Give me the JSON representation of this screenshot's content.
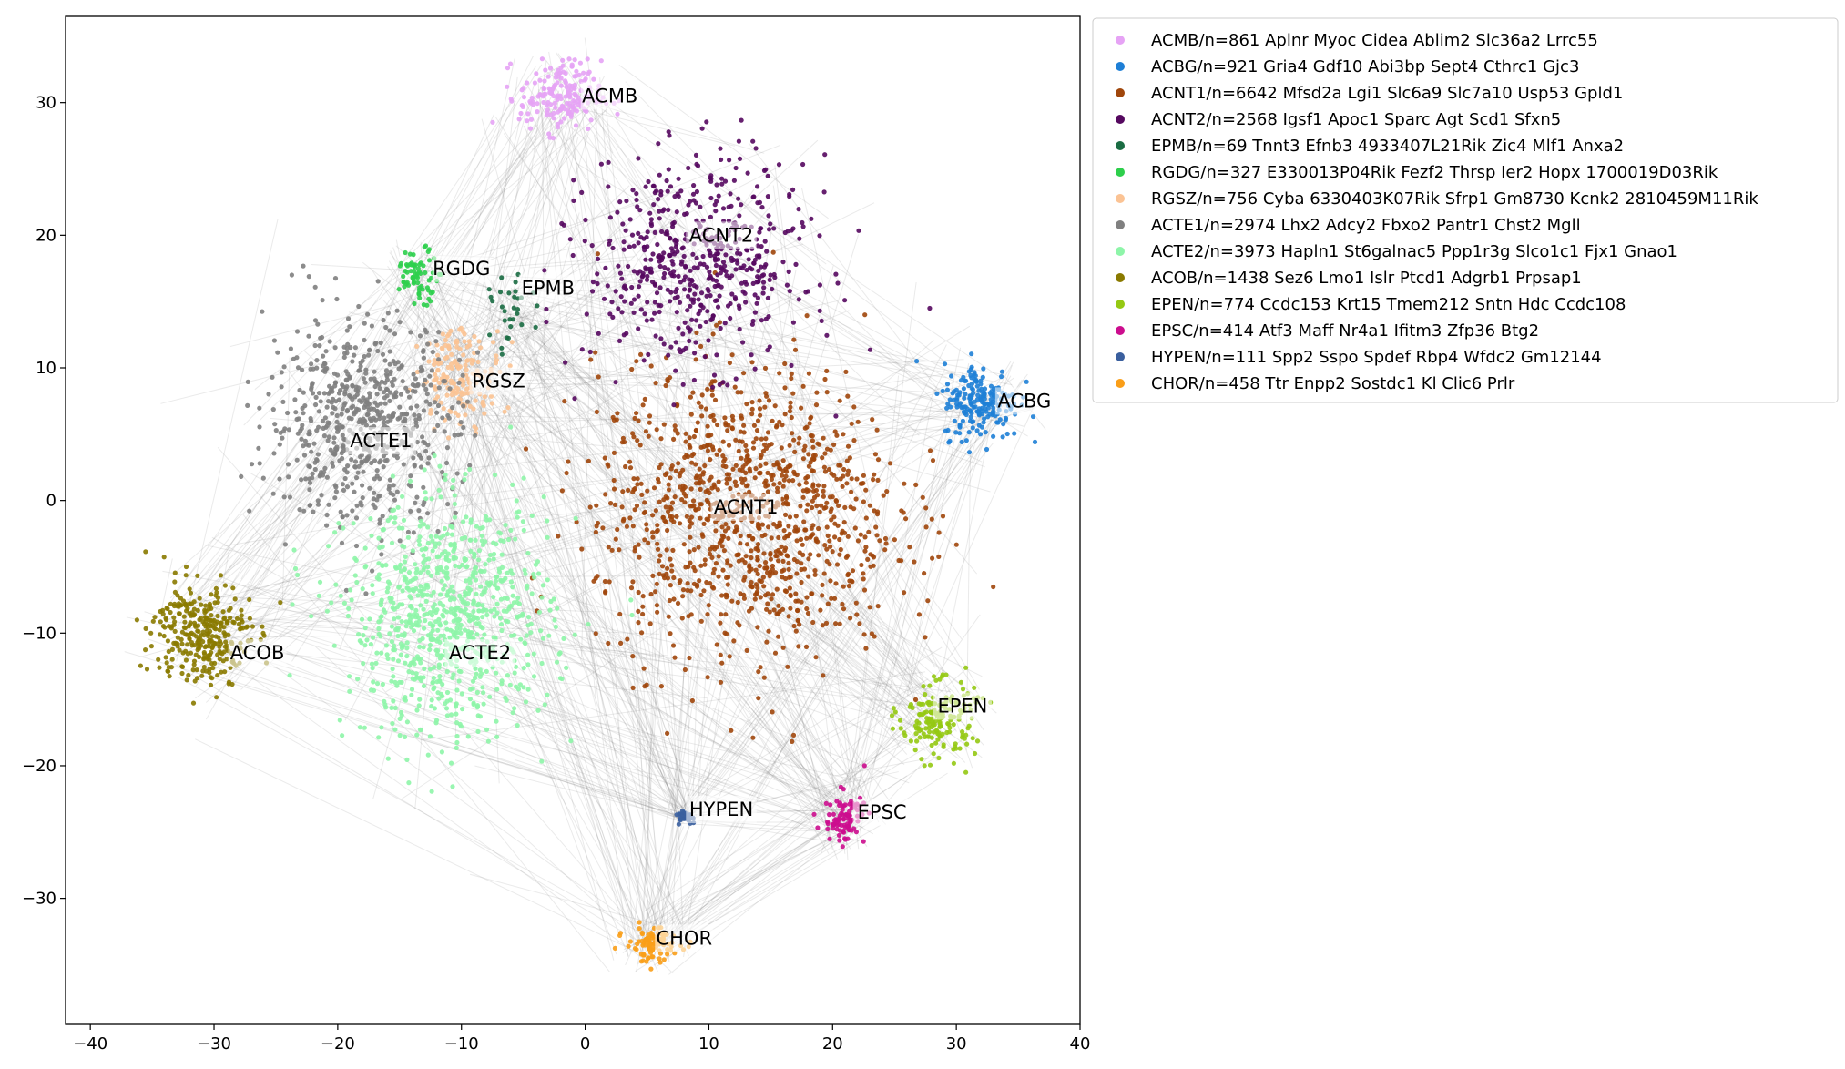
{
  "chart_data": {
    "type": "scatter",
    "title": "",
    "xlabel": "",
    "ylabel": "",
    "xlim": [
      -42,
      40
    ],
    "ylim": [
      -39.5,
      36.5
    ],
    "xticks": [
      -40,
      -30,
      -20,
      -10,
      0,
      10,
      20,
      30,
      40
    ],
    "yticks": [
      -30,
      -20,
      -10,
      0,
      10,
      20,
      30
    ],
    "grid": false,
    "legend_position": "outside-top-right",
    "series": [
      {
        "name": "ACMB/n=861 Aplnr Myoc Cidea Ablim2 Slc36a2 Lrrc55",
        "label": "ACMB",
        "color": "#e6a3f5",
        "center": [
          -2,
          30.5
        ],
        "spread": [
          3.0,
          2.4
        ],
        "label_pos": [
          2,
          30.5
        ]
      },
      {
        "name": "ACBG/n=921 Gria4 Gdf10 Abi3bp Sept4 Cthrc1 Gjc3",
        "label": "ACBG",
        "color": "#1e7fd6",
        "center": [
          32,
          7.5
        ],
        "spread": [
          2.8,
          2.6
        ],
        "label_pos": [
          35.5,
          7.5
        ]
      },
      {
        "name": "ACNT1/n=6642 Mfsd2a Lgi1 Slc6a9 Slc7a10 Usp53 Gpld1",
        "label": "ACNT1",
        "color": "#a0460b",
        "center": [
          13,
          -1
        ],
        "spread": [
          11,
          10
        ],
        "label_pos": [
          13,
          -0.5
        ]
      },
      {
        "name": "ACNT2/n=2568 Igsf1 Apoc1 Sparc Agt Scd1 Sfxn5",
        "label": "ACNT2",
        "color": "#55085f",
        "center": [
          9,
          18
        ],
        "spread": [
          8,
          7
        ],
        "label_pos": [
          11,
          20
        ]
      },
      {
        "name": "EPMB/n=69 Tnnt3 Efnb3 4933407L21Rik Zic4 Mlf1 Anxa2",
        "label": "EPMB",
        "color": "#1a6c43",
        "center": [
          -6,
          14
        ],
        "spread": [
          1.5,
          2.5
        ],
        "label_pos": [
          -3,
          16
        ]
      },
      {
        "name": "RGDG/n=327 E330013P04Rik Fezf2 Thrsp Ier2 Hopx 1700019D03Rik",
        "label": "RGDG",
        "color": "#2ecf4c",
        "center": [
          -13.5,
          17
        ],
        "spread": [
          1.6,
          1.8
        ],
        "label_pos": [
          -10,
          17.5
        ]
      },
      {
        "name": "RGSZ/n=756 Cyba 6330403K07Rik Sfrp1 Gm8730 Kcnk2 2810459M11Rik",
        "label": "RGSZ",
        "color": "#fbc394",
        "center": [
          -10,
          9.5
        ],
        "spread": [
          3.0,
          3.2
        ],
        "label_pos": [
          -7,
          9
        ]
      },
      {
        "name": "ACTE1/n=2974 Lhx2 Adcy2 Fbxo2 Pantr1 Chst2 Mgll",
        "label": "ACTE1",
        "color": "#808080",
        "center": [
          -18,
          6
        ],
        "spread": [
          7,
          7
        ],
        "label_pos": [
          -16.5,
          4.5
        ]
      },
      {
        "name": "ACTE2/n=3973 Hapln1 St6galnac5 Ppp1r3g Slco1c1 Fjx1 Gnao1",
        "label": "ACTE2",
        "color": "#8ef5a9",
        "center": [
          -11,
          -9
        ],
        "spread": [
          7.5,
          8
        ],
        "label_pos": [
          -8.5,
          -11.5
        ]
      },
      {
        "name": "ACOB/n=1438 Sez6 Lmo1 Islr Ptcd1 Adgrb1 Prpsap1",
        "label": "ACOB",
        "color": "#8a7a00",
        "center": [
          -31,
          -10
        ],
        "spread": [
          3.5,
          3.5
        ],
        "label_pos": [
          -26.5,
          -11.5
        ]
      },
      {
        "name": "EPEN/n=774 Ccdc153 Krt15 Tmem212 Sntn Hdc Ccdc108",
        "label": "EPEN",
        "color": "#95c913",
        "center": [
          28.5,
          -16.5
        ],
        "spread": [
          2.8,
          2.6
        ],
        "label_pos": [
          30.5,
          -15.5
        ]
      },
      {
        "name": "EPSC/n=414 Atf3 Maff Nr4a1 Ifitm3 Zfp36 Btg2",
        "label": "EPSC",
        "color": "#cc0d8e",
        "center": [
          21,
          -24
        ],
        "spread": [
          1.5,
          1.7
        ],
        "label_pos": [
          24,
          -23.5
        ]
      },
      {
        "name": "HYPEN/n=111 Spp2 Sspo Spdef Rbp4 Wfdc2 Gm12144",
        "label": "HYPEN",
        "color": "#3a5f9e",
        "center": [
          8,
          -23.8
        ],
        "spread": [
          0.6,
          0.4
        ],
        "label_pos": [
          11,
          -23.3
        ]
      },
      {
        "name": "CHOR/n=458 Ttr Enpp2 Sostdc1 Kl Clic6 Prlr",
        "label": "CHOR",
        "color": "#fa9e18",
        "center": [
          5.5,
          -33.5
        ],
        "spread": [
          2.0,
          1.2
        ],
        "label_pos": [
          8,
          -33
        ]
      }
    ]
  }
}
